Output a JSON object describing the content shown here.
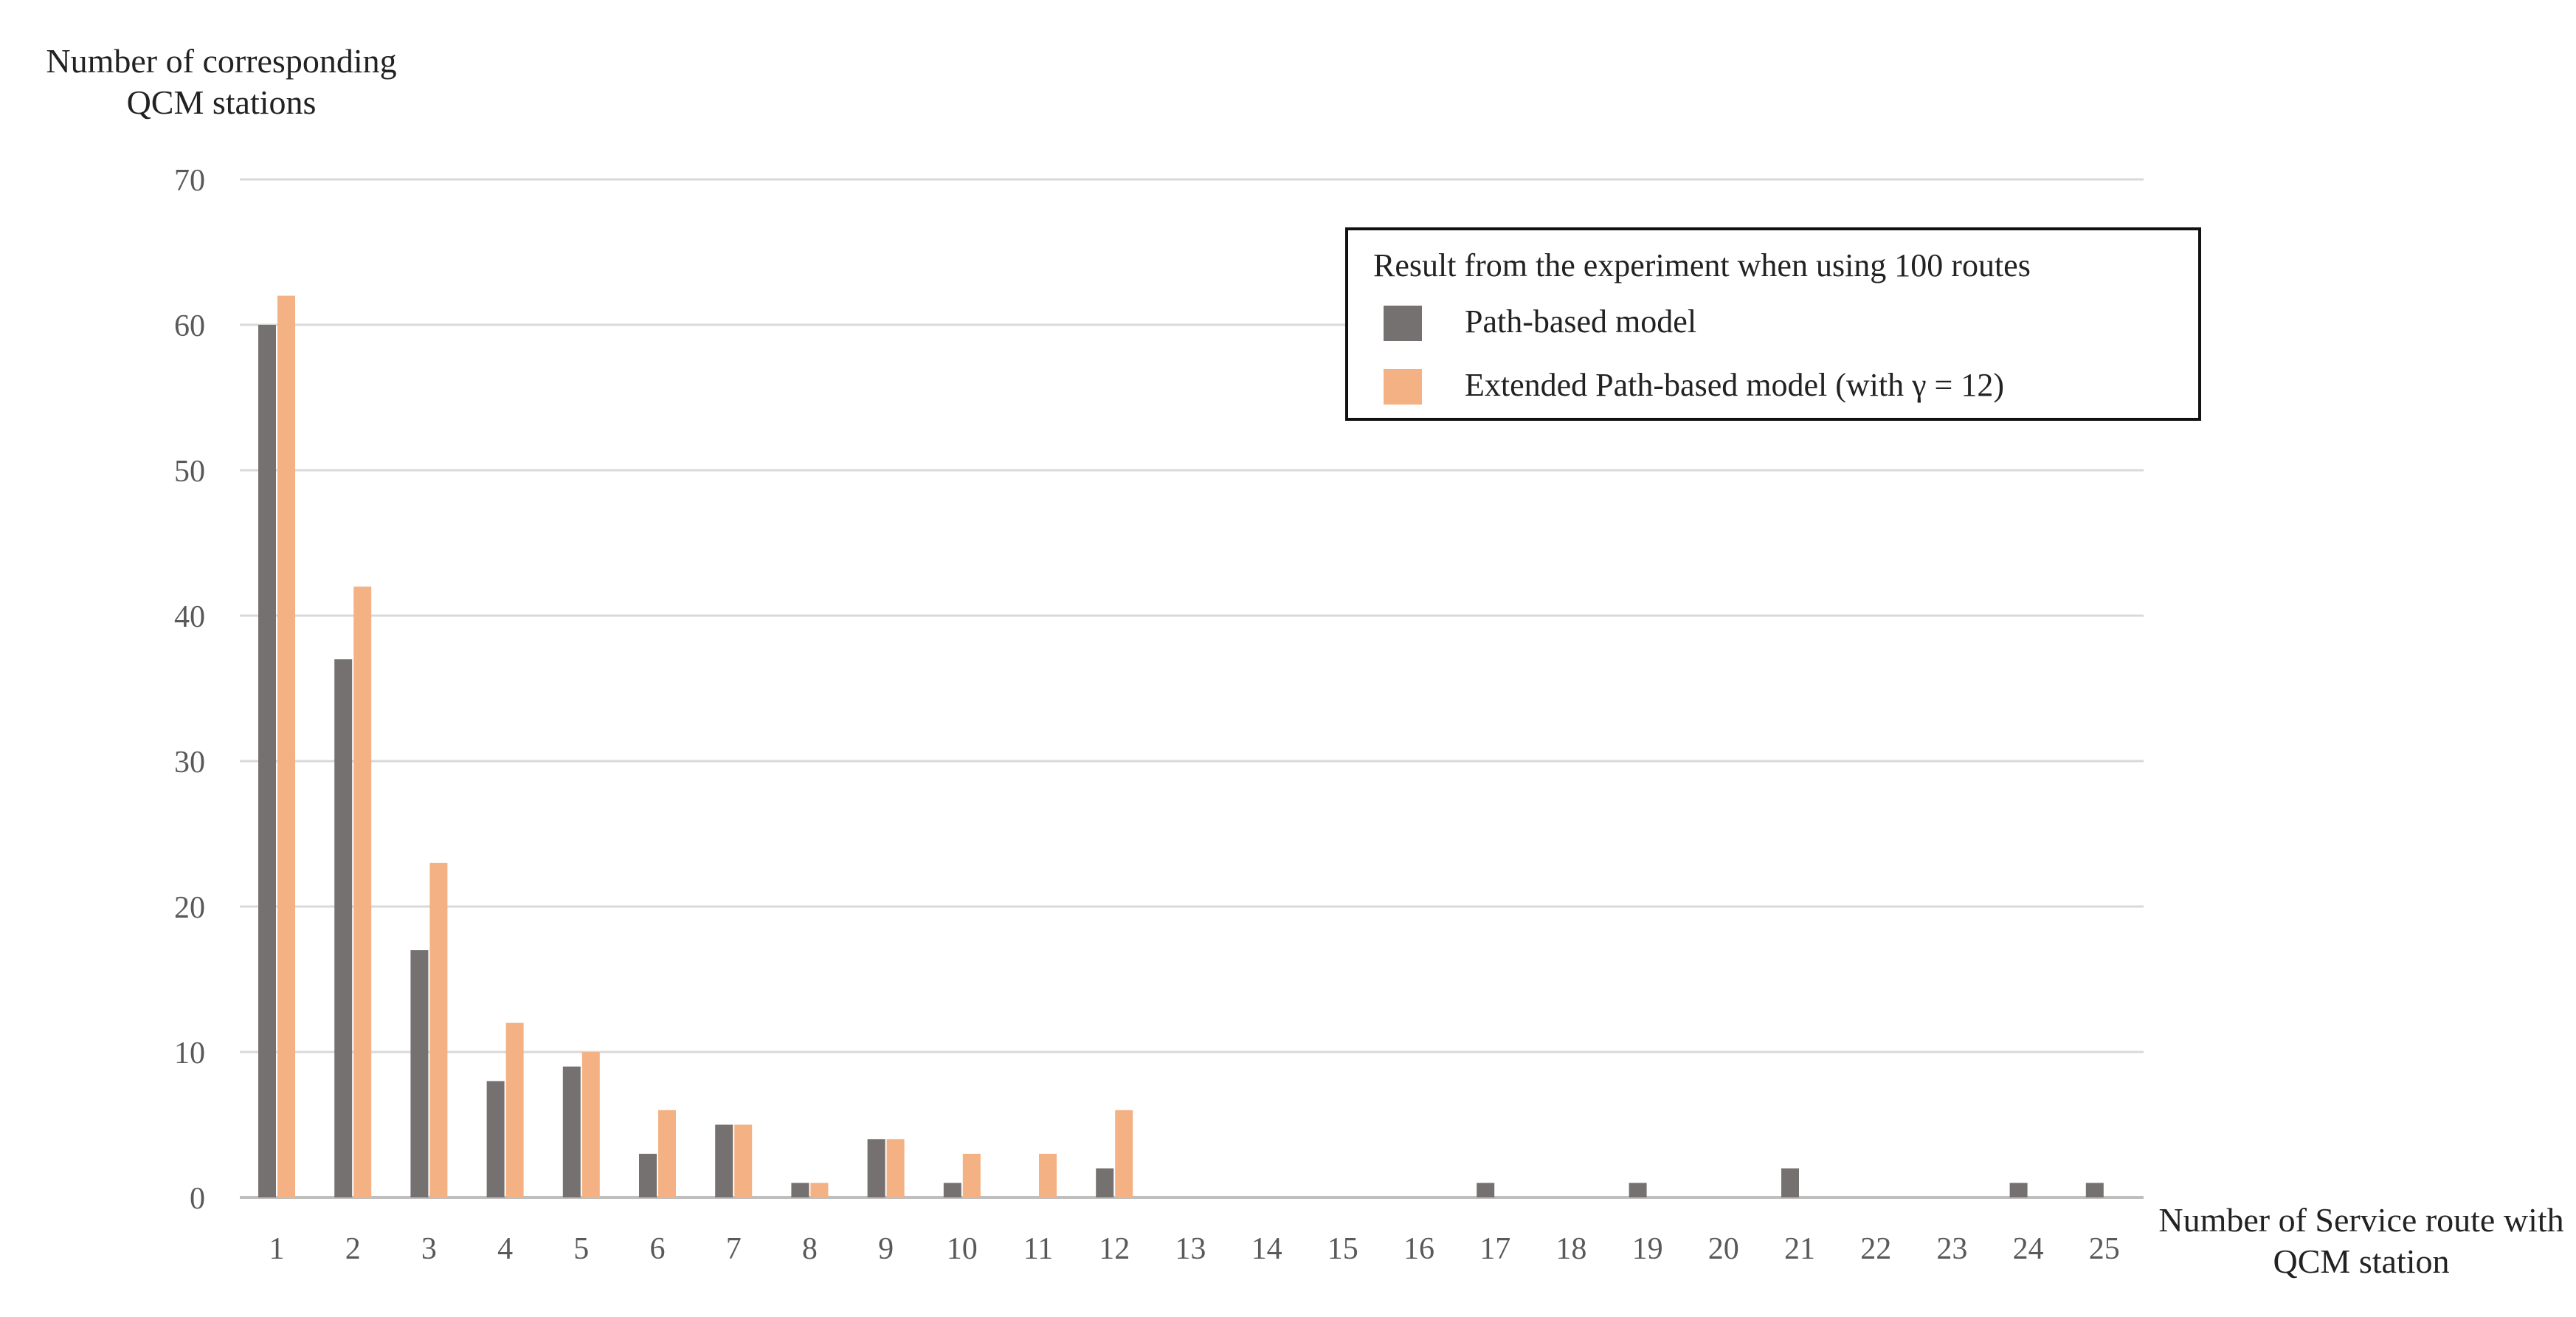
{
  "chart_data": {
    "type": "bar",
    "ylabel": "Number of  corresponding QCM stations",
    "xlabel": "Number of Service route with QCM station",
    "categories": [
      "1",
      "2",
      "3",
      "4",
      "5",
      "6",
      "7",
      "8",
      "9",
      "10",
      "11",
      "12",
      "13",
      "14",
      "15",
      "16",
      "17",
      "18",
      "19",
      "20",
      "21",
      "22",
      "23",
      "24",
      "25"
    ],
    "series": [
      {
        "name": "Path-based model",
        "color": "#767171",
        "values": [
          60,
          37,
          17,
          8,
          9,
          3,
          5,
          1,
          4,
          1,
          0,
          2,
          0,
          0,
          0,
          0,
          1,
          0,
          1,
          0,
          2,
          0,
          0,
          1,
          1
        ]
      },
      {
        "name": "Extended Path-based model (with γ = 12)",
        "color": "#f4b183",
        "values": [
          62,
          42,
          23,
          12,
          10,
          6,
          5,
          1,
          4,
          3,
          3,
          6,
          0,
          0,
          0,
          0,
          0,
          0,
          0,
          0,
          0,
          0,
          0,
          0,
          0
        ]
      }
    ],
    "ylim": [
      0,
      70
    ],
    "yticks": [
      0,
      10,
      20,
      30,
      40,
      50,
      60,
      70
    ],
    "grid": true,
    "legend": {
      "title": "Result from the experiment when using 100 routes",
      "position": "top-right"
    }
  }
}
